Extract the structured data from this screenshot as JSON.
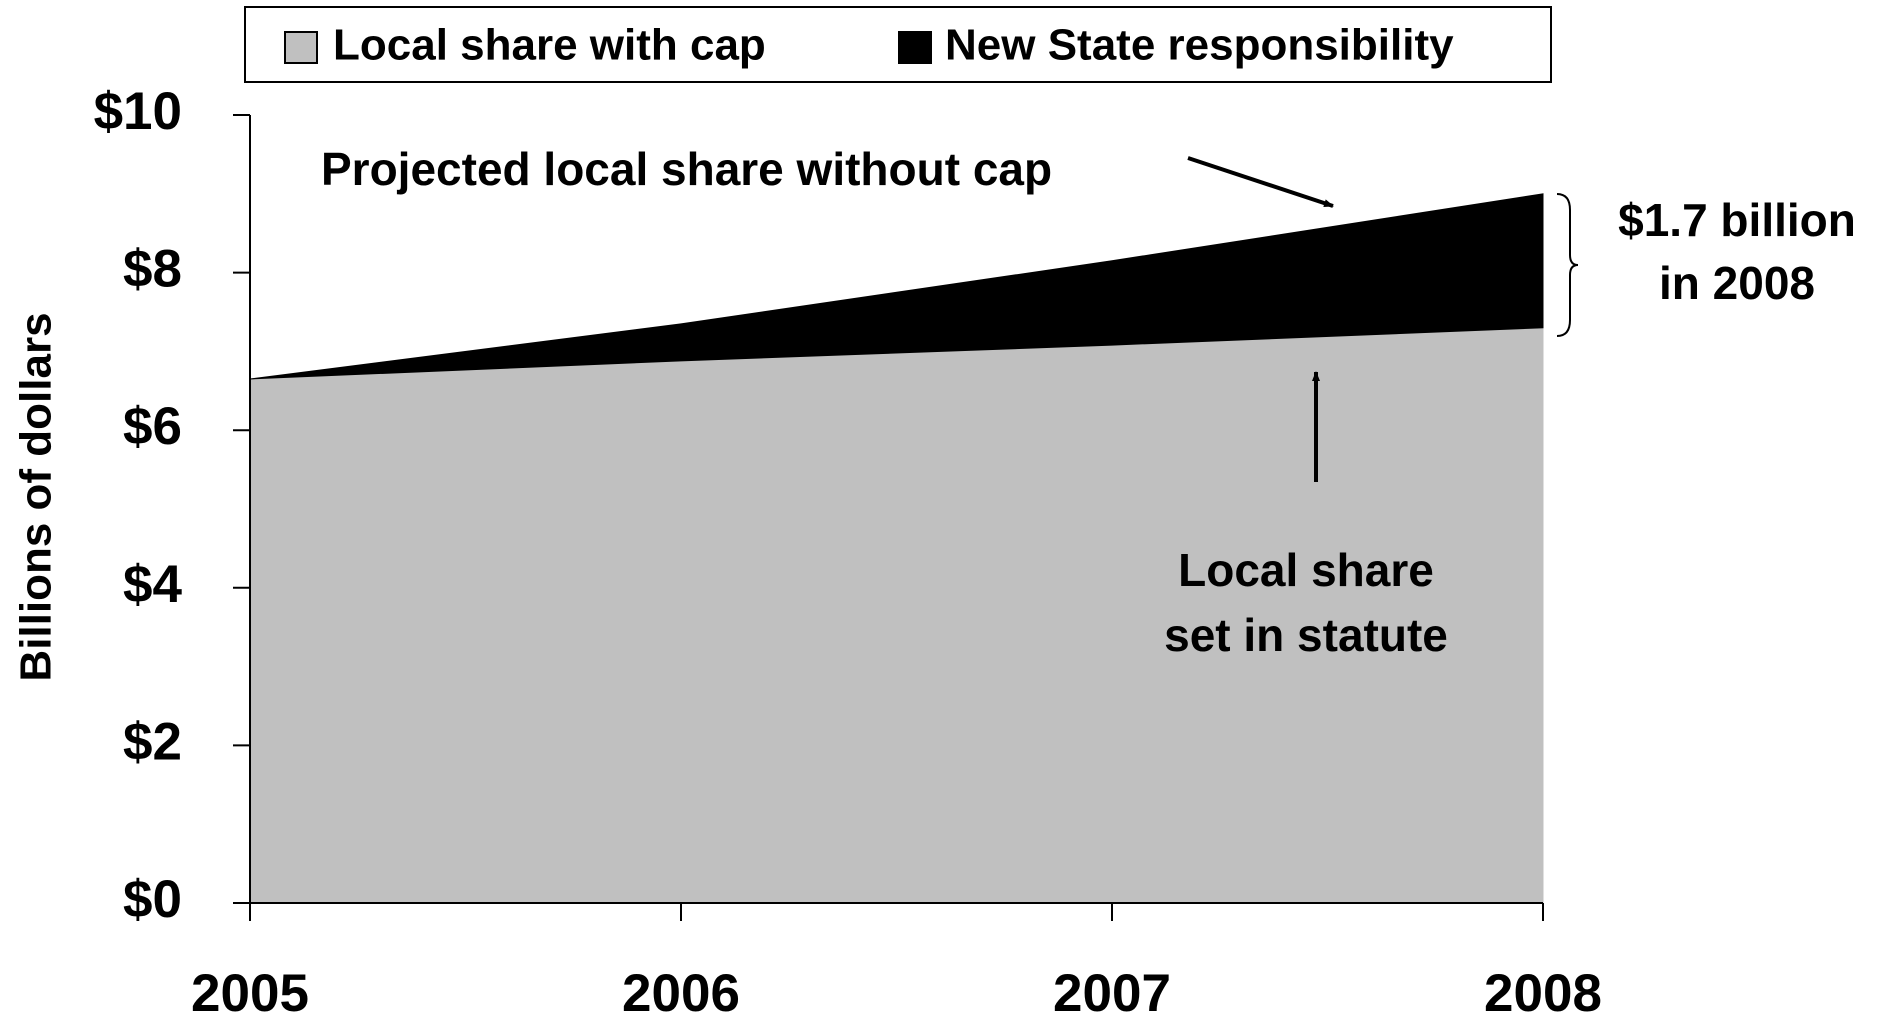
{
  "chart_data": {
    "type": "stacked_area",
    "legend": "top",
    "x": [
      2005,
      2006,
      2007,
      2008
    ],
    "xlim": [
      2005,
      2008
    ],
    "xticks": [
      2005,
      2006,
      2007,
      2008
    ],
    "ylabel": "Billions of dollars",
    "ylim": [
      0,
      10
    ],
    "yticks": [
      {
        "value": 0,
        "label": "$0"
      },
      {
        "value": 2,
        "label": "$2"
      },
      {
        "value": 4,
        "label": "$4"
      },
      {
        "value": 6,
        "label": "$6"
      },
      {
        "value": 8,
        "label": "$8"
      },
      {
        "value": 10,
        "label": "$10"
      }
    ],
    "series": [
      {
        "name": "Local share with cap",
        "color": "#c0c0c0",
        "values": [
          6.65,
          6.88,
          7.08,
          7.3
        ]
      },
      {
        "name": "New State responsibility",
        "color": "#000000",
        "values": [
          0,
          0.47,
          1.07,
          1.7
        ]
      }
    ],
    "annotations": [
      {
        "lines": [
          "Projected local share without cap"
        ]
      },
      {
        "lines": [
          "$1.7 billion",
          "in 2008"
        ]
      },
      {
        "lines": [
          "Local share",
          "set in statute"
        ]
      }
    ]
  }
}
